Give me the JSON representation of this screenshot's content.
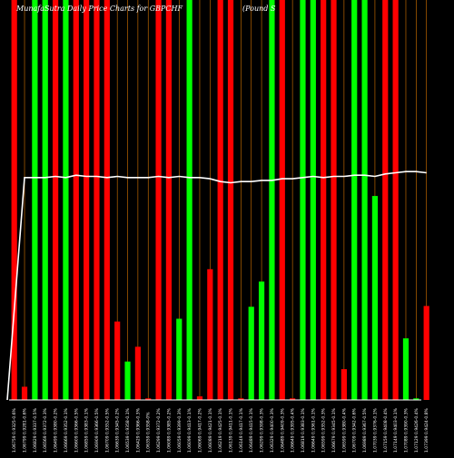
{
  "chart_data": {
    "type": "bar",
    "title": "MunafaSutra Daily Price Charts for GBPCHF",
    "subtitle": "(Pound S",
    "title_color": "#ffffff",
    "background": "#000000",
    "colors": {
      "up": "#00ff00",
      "down": "#ff0000",
      "divider": "#ff8c00",
      "line": "#ffffff",
      "baseline": "#ffffff"
    },
    "value_range": [
      0,
      100
    ],
    "line_range": [
      0,
      100
    ],
    "bars": [
      {
        "label": "1.06759 0.9325-0.6%",
        "dir": "down",
        "value": 100
      },
      {
        "label": "1.06799 0.9281-0.6%",
        "dir": "down",
        "value": 3.3
      },
      {
        "label": "1.06829 0.9337-0.5%",
        "dir": "up",
        "value": 100
      },
      {
        "label": "1.06569 0.9372-0.3%",
        "dir": "up",
        "value": 100
      },
      {
        "label": "1.06499 0.9380-0.2%",
        "dir": "down",
        "value": 100
      },
      {
        "label": "1.06669 0.9352-0.1%",
        "dir": "up",
        "value": 100
      },
      {
        "label": "1.06609 0.9366-0.5%",
        "dir": "down",
        "value": 100
      },
      {
        "label": "1.06859 0.9383-0.1%",
        "dir": "down",
        "value": 100
      },
      {
        "label": "1.06909 0.9366-0.5%",
        "dir": "down",
        "value": 100
      },
      {
        "label": "1.06709 0.9352-0.5%",
        "dir": "down",
        "value": 100
      },
      {
        "label": "1.06639 0.9345-0.2%",
        "dir": "down",
        "value": 19.6
      },
      {
        "label": "1.06539 0.9358-0.1%",
        "dir": "up",
        "value": 9.6
      },
      {
        "label": "1.06429 0.9366-0.3%",
        "dir": "down",
        "value": 13.3
      },
      {
        "label": "1.06359 0.9358-0%",
        "dir": "down",
        "value": 0.4
      },
      {
        "label": "1.06299 0.9372-0.2%",
        "dir": "down",
        "value": 100
      },
      {
        "label": "1.06089 0.9385-0.2%",
        "dir": "down",
        "value": 100
      },
      {
        "label": "1.06059 0.9399-0.3%",
        "dir": "up",
        "value": 20.3
      },
      {
        "label": "1.06099 0.9413-0.1%",
        "dir": "up",
        "value": 100
      },
      {
        "label": "1.06069 0.9417-0.2%",
        "dir": "down",
        "value": 0.9
      },
      {
        "label": "1.06089 0.9421-0.1%",
        "dir": "down",
        "value": 32.7
      },
      {
        "label": "1.06219 0.9425-0.1%",
        "dir": "down",
        "value": 100
      },
      {
        "label": "1.06139 0.9411-0.1%",
        "dir": "down",
        "value": 100
      },
      {
        "label": "1.06149 0.9417-0.1%",
        "dir": "down",
        "value": 0.4
      },
      {
        "label": "1.06489 0.9415-0.1%",
        "dir": "up",
        "value": 23.3
      },
      {
        "label": "1.06299 0.9398-0.3%",
        "dir": "up",
        "value": 29.6
      },
      {
        "label": "1.06329 0.9400-0.3%",
        "dir": "up",
        "value": 100
      },
      {
        "label": "1.06489 0.9409-0.3%",
        "dir": "down",
        "value": 100
      },
      {
        "label": "1.06649 0.9395-0.4%",
        "dir": "down",
        "value": 0.4
      },
      {
        "label": "1.06819 0.9383-0.1%",
        "dir": "up",
        "value": 100
      },
      {
        "label": "1.06649 0.9361-0.1%",
        "dir": "up",
        "value": 100
      },
      {
        "label": "1.06599 0.9352-0.3%",
        "dir": "down",
        "value": 100
      },
      {
        "label": "1.06679 0.9345-0.1%",
        "dir": "down",
        "value": 100
      },
      {
        "label": "1.06599 0.9380-0.4%",
        "dir": "down",
        "value": 7.7
      },
      {
        "label": "1.06709 0.9342-0.6%",
        "dir": "up",
        "value": 100
      },
      {
        "label": "1.06989 0.9367-0.5%",
        "dir": "up",
        "value": 100
      },
      {
        "label": "1.07039 0.9376-0.1%",
        "dir": "up",
        "value": 51
      },
      {
        "label": "1.07159 0.9408-0.4%",
        "dir": "down",
        "value": 100
      },
      {
        "label": "1.07149 0.9403-0.1%",
        "dir": "down",
        "value": 100
      },
      {
        "label": "1.07089 0.9390-0.3%",
        "dir": "up",
        "value": 15.4
      },
      {
        "label": "1.07129 0.9426-0.4%",
        "dir": "up",
        "value": 0.4
      },
      {
        "label": "1.07399 0.9424-0.8%",
        "dir": "down",
        "value": 23.5
      }
    ],
    "line": [
      0,
      55.6,
      55.6,
      55.6,
      55.9,
      55.6,
      56.2,
      55.9,
      55.9,
      55.6,
      55.9,
      55.6,
      55.6,
      55.6,
      55.9,
      55.6,
      55.9,
      55.6,
      55.6,
      55.3,
      54.6,
      54.3,
      54.6,
      54.6,
      54.9,
      54.9,
      55.3,
      55.3,
      55.6,
      55.9,
      55.6,
      55.9,
      55.9,
      56.2,
      56.2,
      55.9,
      56.5,
      56.8,
      57.1,
      57.1,
      56.8
    ]
  }
}
